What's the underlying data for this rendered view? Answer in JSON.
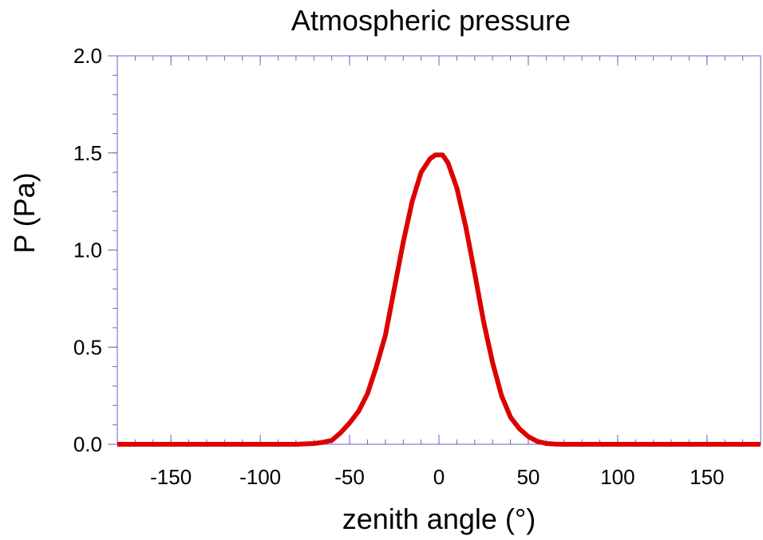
{
  "chart_data": {
    "type": "line",
    "title": "Atmospheric pressure",
    "xlabel": "zenith angle (°)",
    "ylabel": "P (Pa)",
    "xlim": [
      -180,
      180
    ],
    "ylim": [
      0.0,
      2.0
    ],
    "xticks": [
      -150,
      -100,
      -50,
      0,
      50,
      100,
      150
    ],
    "xtick_labels": [
      "-150",
      "-100",
      "-50",
      "0",
      "50",
      "100",
      "150"
    ],
    "yticks": [
      0.0,
      0.5,
      1.0,
      1.5,
      2.0
    ],
    "ytick_labels": [
      "0.0",
      "0.5",
      "1.0",
      "1.5",
      "2.0"
    ],
    "grid": false,
    "colors": {
      "axis": "#6666cc",
      "line": "#dd0000"
    },
    "series": [
      {
        "x": [
          -180,
          -170,
          -160,
          -150,
          -140,
          -130,
          -120,
          -110,
          -100,
          -90,
          -80,
          -75,
          -70,
          -65,
          -60,
          -55,
          -50,
          -45,
          -40,
          -35,
          -30,
          -25,
          -20,
          -15,
          -10,
          -5,
          -2,
          0,
          2,
          5,
          10,
          15,
          20,
          25,
          30,
          35,
          40,
          45,
          50,
          55,
          60,
          65,
          70,
          75,
          80,
          90,
          100,
          110,
          120,
          130,
          140,
          150,
          160,
          170,
          180
        ],
        "y": [
          0,
          0,
          0,
          0,
          0,
          0,
          0,
          0,
          0,
          0,
          0,
          0.002,
          0.004,
          0.01,
          0.02,
          0.06,
          0.11,
          0.17,
          0.26,
          0.4,
          0.56,
          0.8,
          1.04,
          1.25,
          1.4,
          1.47,
          1.49,
          1.49,
          1.49,
          1.45,
          1.32,
          1.12,
          0.88,
          0.63,
          0.42,
          0.25,
          0.14,
          0.08,
          0.04,
          0.015,
          0.004,
          0.001,
          0,
          0,
          0,
          0,
          0,
          0,
          0,
          0,
          0,
          0,
          0,
          0,
          0
        ]
      }
    ]
  }
}
